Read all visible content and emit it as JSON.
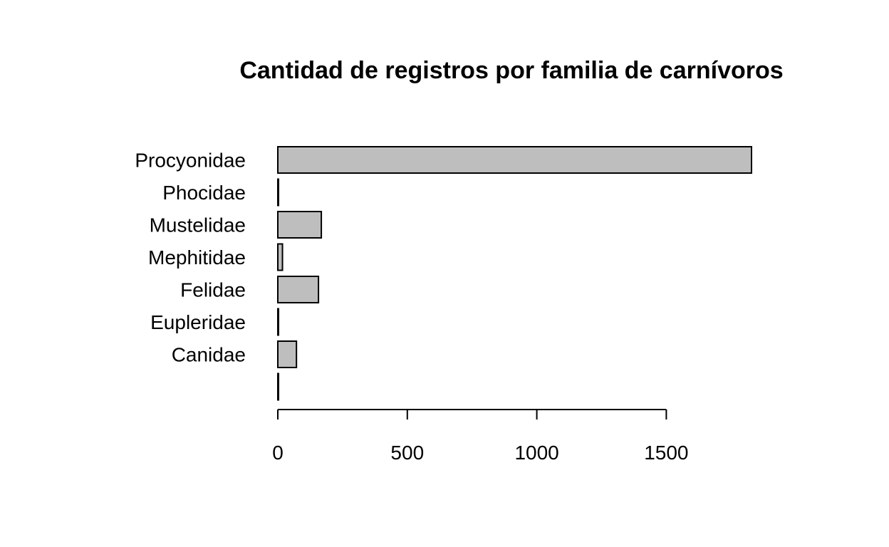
{
  "chart_data": {
    "type": "bar",
    "orientation": "horizontal",
    "title": "Cantidad de registros por familia de carnívoros",
    "xlabel": "",
    "ylabel": "",
    "categories": [
      "",
      "Canidae",
      "Eupleridae",
      "Felidae",
      "Mephitidae",
      "Mustelidae",
      "Phocidae",
      "Procyonidae"
    ],
    "values": [
      1,
      72,
      2,
      157,
      18,
      168,
      2,
      1829
    ],
    "xlim": [
      0,
      1829
    ],
    "x_ticks": [
      0,
      500,
      1000,
      1500
    ],
    "tick_labels": [
      "0",
      "500",
      "1000",
      "1500"
    ],
    "grid": false,
    "legend": "none",
    "colors": {
      "bar_fill": "#bebebe",
      "bar_stroke": "#000000"
    }
  }
}
